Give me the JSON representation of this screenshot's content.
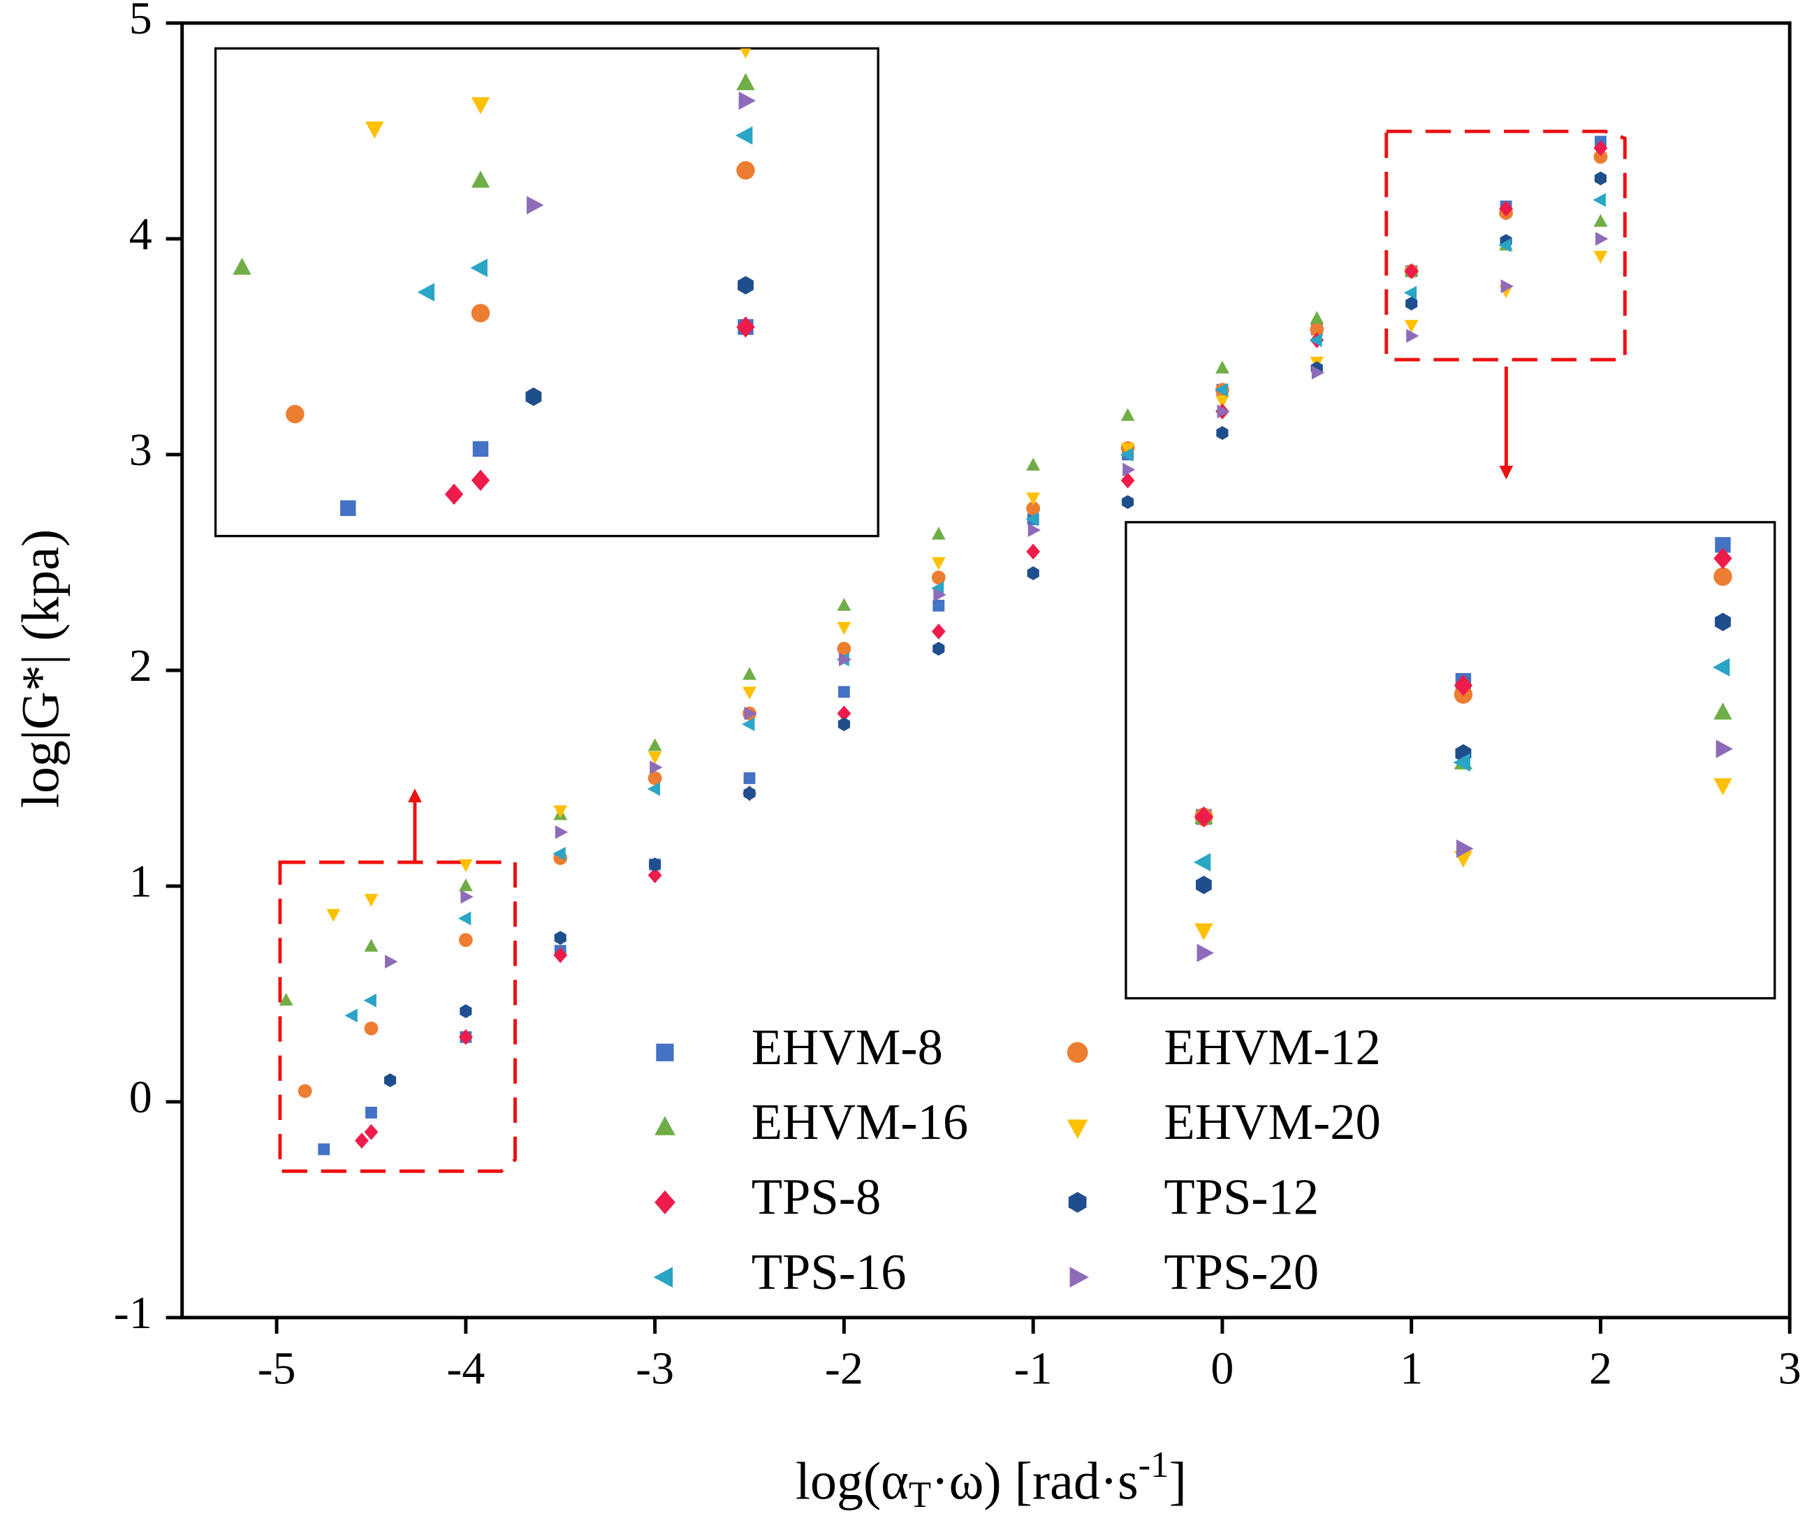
{
  "chart_data": {
    "type": "scatter",
    "xlabel": [
      "log(α",
      "T",
      "·ω) [rad·s",
      "-1",
      "]"
    ],
    "ylabel": "log|G*| (kpa)",
    "xlim": [
      -5.5,
      3
    ],
    "ylim": [
      -1,
      5
    ],
    "xticks": [
      -5,
      -4,
      -3,
      -2,
      -1,
      0,
      1,
      2,
      3
    ],
    "yticks": [
      -1,
      0,
      1,
      2,
      3,
      4,
      5
    ],
    "insets": [
      {
        "xlim": [
          -5,
          -3.75
        ],
        "ylim": [
          -0.3,
          1.1
        ]
      },
      {
        "xlim": [
          0.85,
          2.1
        ],
        "ylim": [
          3.45,
          4.5
        ]
      }
    ],
    "series": [
      {
        "name": "EHVM-8",
        "color": "#4472c4",
        "marker": "square",
        "x": [
          -4.75,
          -4.5,
          -4,
          -3.5,
          -3,
          -2.5,
          -2,
          -1.5,
          -1,
          -0.5,
          0,
          0.5,
          1,
          1.5,
          2
        ],
        "values": [
          -0.22,
          -0.05,
          0.3,
          0.7,
          1.1,
          1.5,
          1.9,
          2.3,
          2.7,
          3.0,
          3.3,
          3.58,
          3.85,
          4.15,
          4.45
        ]
      },
      {
        "name": "EHVM-12",
        "color": "#ed7d31",
        "marker": "circle",
        "x": [
          -4.85,
          -4.5,
          -4,
          -3.5,
          -3,
          -2.5,
          -2,
          -1.5,
          -1,
          -0.5,
          0,
          0.5,
          1,
          1.5,
          2
        ],
        "values": [
          0.05,
          0.34,
          0.75,
          1.13,
          1.5,
          1.8,
          2.1,
          2.43,
          2.75,
          3.03,
          3.3,
          3.58,
          3.85,
          4.12,
          4.38
        ]
      },
      {
        "name": "EHVM-16",
        "color": "#70ad47",
        "marker": "triangle-up",
        "x": [
          -4.95,
          -4.5,
          -4,
          -3.5,
          -3,
          -2.5,
          -2,
          -1.5,
          -1,
          -0.5,
          0,
          0.5,
          1,
          1.5,
          2
        ],
        "values": [
          0.47,
          0.72,
          1.0,
          1.33,
          1.65,
          1.98,
          2.3,
          2.63,
          2.95,
          3.18,
          3.4,
          3.63,
          3.85,
          3.97,
          4.08
        ]
      },
      {
        "name": "EHVM-20",
        "color": "#ffc000",
        "marker": "triangle-down",
        "x": [
          -4.7,
          -4.5,
          -4,
          -3.5,
          -3,
          -2.5,
          -2,
          -1.5,
          -1,
          -0.5,
          0,
          0.5,
          1,
          1.5,
          2
        ],
        "values": [
          0.87,
          0.94,
          1.1,
          1.35,
          1.6,
          1.9,
          2.2,
          2.5,
          2.8,
          3.03,
          3.25,
          3.43,
          3.6,
          3.76,
          3.92
        ]
      },
      {
        "name": "TPS-8",
        "color": "#ee1c4a",
        "marker": "diamond",
        "x": [
          -4.55,
          -4.5,
          -4,
          -3.5,
          -3,
          -2.5,
          -2,
          -1.5,
          -1,
          -0.5,
          0,
          0.5,
          1,
          1.5,
          2
        ],
        "values": [
          -0.18,
          -0.14,
          0.3,
          0.68,
          1.05,
          1.43,
          1.8,
          2.18,
          2.55,
          2.88,
          3.2,
          3.53,
          3.85,
          4.14,
          4.42
        ]
      },
      {
        "name": "TPS-12",
        "color": "#1f4e8c",
        "marker": "hexagon",
        "x": [
          -4.4,
          -4,
          -3.5,
          -3,
          -2.5,
          -2,
          -1.5,
          -1,
          -0.5,
          0,
          0.5,
          1,
          1.5,
          2
        ],
        "values": [
          0.1,
          0.42,
          0.76,
          1.1,
          1.43,
          1.75,
          2.1,
          2.45,
          2.78,
          3.1,
          3.4,
          3.7,
          3.99,
          4.28
        ]
      },
      {
        "name": "TPS-16",
        "color": "#2aa5c5",
        "marker": "triangle-left",
        "x": [
          -4.6,
          -4.5,
          -4,
          -3.5,
          -3,
          -2.5,
          -2,
          -1.5,
          -1,
          -0.5,
          0,
          0.5,
          1,
          1.5,
          2
        ],
        "values": [
          0.4,
          0.47,
          0.85,
          1.15,
          1.45,
          1.75,
          2.05,
          2.38,
          2.7,
          3.0,
          3.3,
          3.53,
          3.75,
          3.97,
          4.18
        ]
      },
      {
        "name": "TPS-20",
        "color": "#8e6bb8",
        "marker": "triangle-right",
        "x": [
          -4.4,
          -4,
          -3.5,
          -3,
          -2.5,
          -2,
          -1.5,
          -1,
          -0.5,
          0,
          0.5,
          1,
          1.5,
          2
        ],
        "values": [
          0.65,
          0.95,
          1.25,
          1.55,
          1.8,
          2.05,
          2.35,
          2.65,
          2.93,
          3.2,
          3.38,
          3.55,
          3.78,
          4.0
        ]
      }
    ]
  }
}
